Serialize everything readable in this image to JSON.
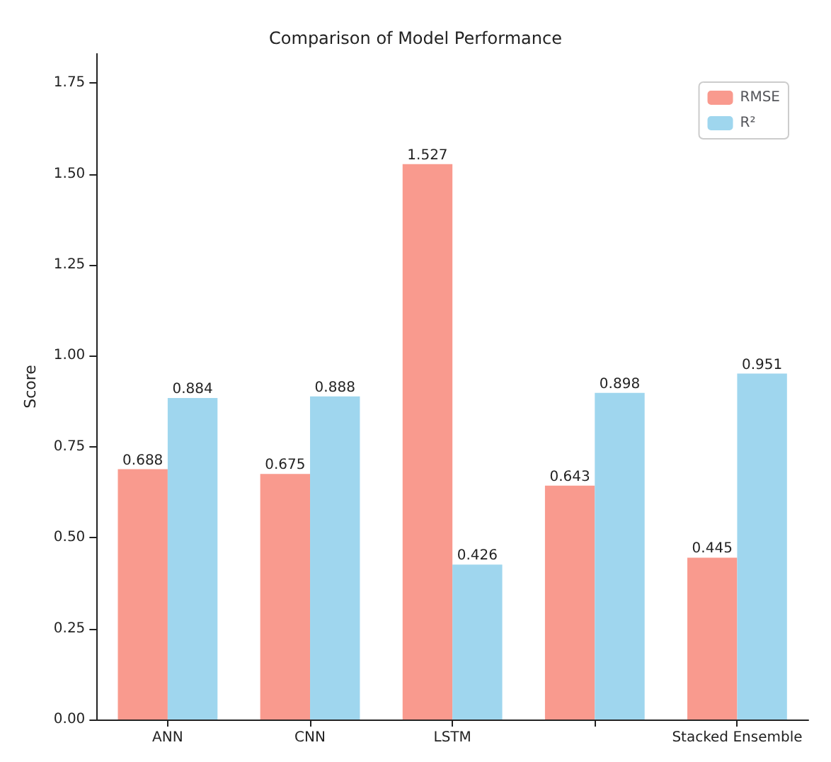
{
  "chart_data": {
    "type": "bar",
    "title": "Comparison of Model Performance",
    "ylabel": "Score",
    "categories": [
      "ANN",
      "CNN",
      "LSTM",
      null,
      "Stacked Ensemble"
    ],
    "series": [
      {
        "name": "RMSE",
        "color": "#f99a8e",
        "values": [
          0.688,
          0.675,
          1.527,
          0.643,
          0.445
        ]
      },
      {
        "name": "R²",
        "color": "#9fd6ee",
        "values": [
          0.884,
          0.888,
          0.426,
          0.898,
          0.951
        ]
      }
    ],
    "ylim": [
      0,
      1.83
    ],
    "yticks": [
      {
        "value": 0,
        "label": "0.00"
      },
      {
        "value": 0.25,
        "label": "0.25"
      },
      {
        "value": 0.5,
        "label": "0.50"
      },
      {
        "value": 0.75,
        "label": "0.75"
      },
      {
        "value": 1,
        "label": "1.00"
      },
      {
        "value": 1.25,
        "label": "1.25"
      },
      {
        "value": 1.5,
        "label": "1.50"
      },
      {
        "value": 1.75,
        "label": "1.75"
      }
    ],
    "data_labels": true,
    "grid": false,
    "legend": "top right"
  }
}
